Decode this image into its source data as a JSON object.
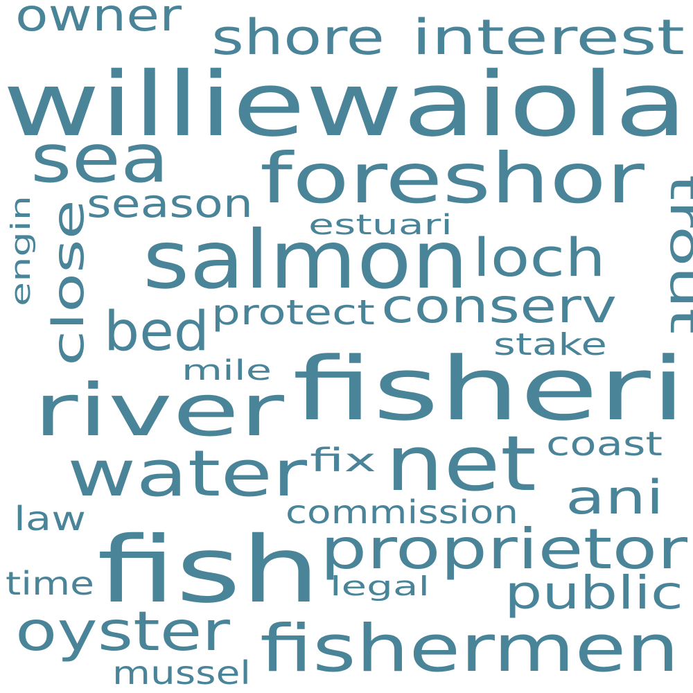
{
  "word_color": "#4a8499",
  "background": "#ffffff",
  "words": [
    {
      "text": "williewaiola"
    },
    {
      "text": "fisheri"
    },
    {
      "text": "fish"
    },
    {
      "text": "salmon"
    },
    {
      "text": "foreshor"
    },
    {
      "text": "river"
    },
    {
      "text": "fishermen"
    },
    {
      "text": "net"
    },
    {
      "text": "water"
    },
    {
      "text": "sea"
    },
    {
      "text": "proprietor"
    },
    {
      "text": "oyster"
    },
    {
      "text": "conserv"
    },
    {
      "text": "loch"
    },
    {
      "text": "bed"
    },
    {
      "text": "shore"
    },
    {
      "text": "interest"
    },
    {
      "text": "public"
    },
    {
      "text": "ani"
    },
    {
      "text": "owner"
    },
    {
      "text": "trout"
    },
    {
      "text": "close"
    },
    {
      "text": "season"
    },
    {
      "text": "protect"
    },
    {
      "text": "commission"
    },
    {
      "text": "coast"
    },
    {
      "text": "mussel"
    },
    {
      "text": "law"
    },
    {
      "text": "time"
    },
    {
      "text": "fix"
    },
    {
      "text": "stake"
    },
    {
      "text": "estuari"
    },
    {
      "text": "mile"
    },
    {
      "text": "legal"
    },
    {
      "text": "engin"
    }
  ]
}
